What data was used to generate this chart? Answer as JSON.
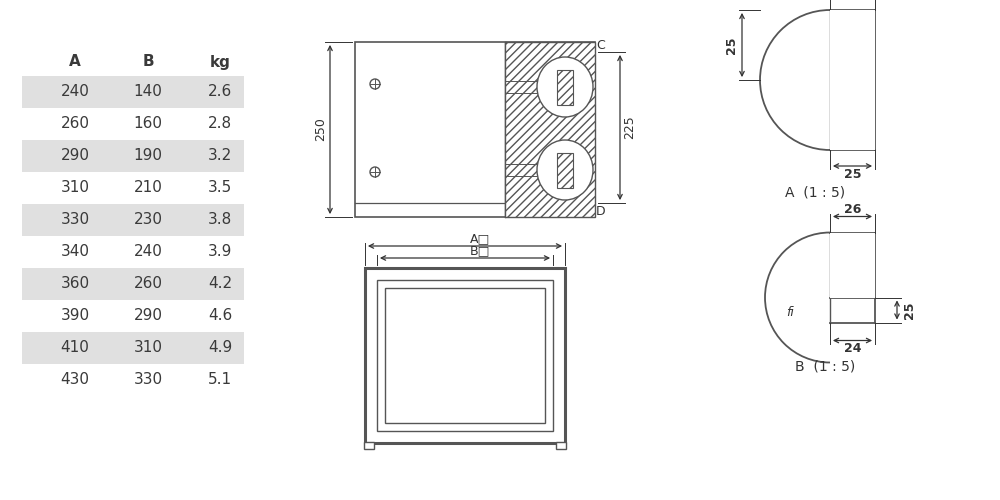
{
  "bg_color": "#ffffff",
  "table_data": {
    "headers": [
      "A",
      "B",
      "kg"
    ],
    "rows": [
      [
        "240",
        "140",
        "2.6"
      ],
      [
        "260",
        "160",
        "2.8"
      ],
      [
        "290",
        "190",
        "3.2"
      ],
      [
        "310",
        "210",
        "3.5"
      ],
      [
        "330",
        "230",
        "3.8"
      ],
      [
        "340",
        "240",
        "3.9"
      ],
      [
        "360",
        "260",
        "4.2"
      ],
      [
        "390",
        "290",
        "4.6"
      ],
      [
        "410",
        "310",
        "4.9"
      ],
      [
        "430",
        "330",
        "5.1"
      ]
    ],
    "shaded_rows": [
      0,
      2,
      4,
      6,
      8
    ],
    "shade_color": "#e0e0e0",
    "text_color": "#3a3a3a",
    "header_color": "#3a3a3a"
  },
  "line_color": "#555555",
  "dim_color": "#333333"
}
